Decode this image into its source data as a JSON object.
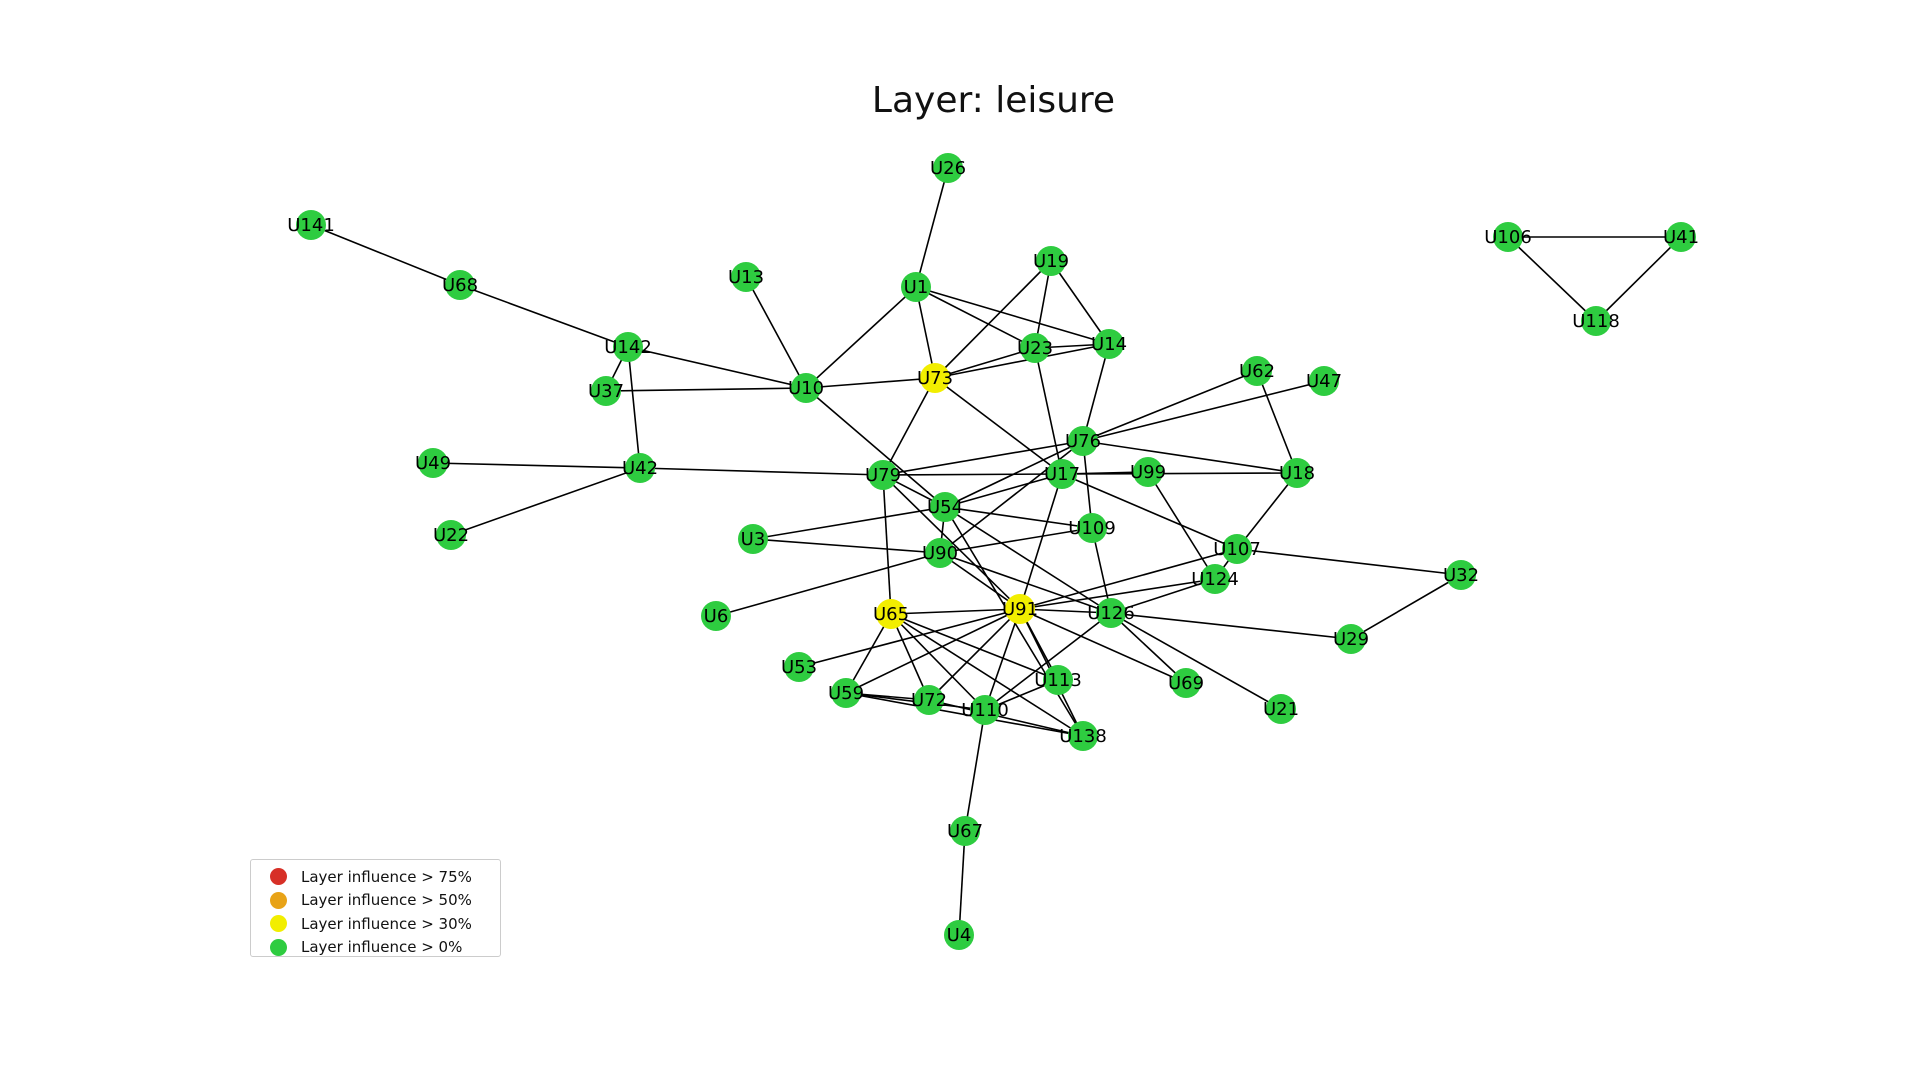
{
  "title": "Layer: leisure",
  "colors": {
    "edge": "#000000",
    "red": "#d73027",
    "orange": "#e8a317",
    "yellow": "#f2ee00",
    "green": "#2ecc40"
  },
  "legend": [
    {
      "label": "Layer influence > 75%",
      "color": "#d73027"
    },
    {
      "label": "Layer influence > 50%",
      "color": "#e8a317"
    },
    {
      "label": "Layer influence > 30%",
      "color": "#f2ee00"
    },
    {
      "label": "Layer influence > 0%",
      "color": "#2ecc40"
    }
  ],
  "nodes": [
    {
      "id": "U26",
      "level": "green"
    },
    {
      "id": "U141",
      "level": "green"
    },
    {
      "id": "U68",
      "level": "green"
    },
    {
      "id": "U13",
      "level": "green"
    },
    {
      "id": "U1",
      "level": "green"
    },
    {
      "id": "U19",
      "level": "green"
    },
    {
      "id": "U142",
      "level": "green"
    },
    {
      "id": "U23",
      "level": "green"
    },
    {
      "id": "U14",
      "level": "green"
    },
    {
      "id": "U37",
      "level": "green"
    },
    {
      "id": "U10",
      "level": "green"
    },
    {
      "id": "U73",
      "level": "yellow"
    },
    {
      "id": "U62",
      "level": "green"
    },
    {
      "id": "U47",
      "level": "green"
    },
    {
      "id": "U76",
      "level": "green"
    },
    {
      "id": "U49",
      "level": "green"
    },
    {
      "id": "U42",
      "level": "green"
    },
    {
      "id": "U79",
      "level": "green"
    },
    {
      "id": "U17",
      "level": "green"
    },
    {
      "id": "U99",
      "level": "green"
    },
    {
      "id": "U18",
      "level": "green"
    },
    {
      "id": "U54",
      "level": "green"
    },
    {
      "id": "U22",
      "level": "green"
    },
    {
      "id": "U3",
      "level": "green"
    },
    {
      "id": "U109",
      "level": "green"
    },
    {
      "id": "U90",
      "level": "green"
    },
    {
      "id": "U107",
      "level": "green"
    },
    {
      "id": "U124",
      "level": "green"
    },
    {
      "id": "U32",
      "level": "green"
    },
    {
      "id": "U6",
      "level": "green"
    },
    {
      "id": "U65",
      "level": "yellow"
    },
    {
      "id": "U91",
      "level": "yellow"
    },
    {
      "id": "U126",
      "level": "green"
    },
    {
      "id": "U29",
      "level": "green"
    },
    {
      "id": "U53",
      "level": "green"
    },
    {
      "id": "U113",
      "level": "green"
    },
    {
      "id": "U69",
      "level": "green"
    },
    {
      "id": "U59",
      "level": "green"
    },
    {
      "id": "U72",
      "level": "green"
    },
    {
      "id": "U110",
      "level": "green"
    },
    {
      "id": "U21",
      "level": "green"
    },
    {
      "id": "U138",
      "level": "green"
    },
    {
      "id": "U67",
      "level": "green"
    },
    {
      "id": "U4",
      "level": "green"
    },
    {
      "id": "U106",
      "level": "green"
    },
    {
      "id": "U41",
      "level": "green"
    },
    {
      "id": "U118",
      "level": "green"
    }
  ],
  "edges": [
    [
      "U141",
      "U68"
    ],
    [
      "U68",
      "U142"
    ],
    [
      "U142",
      "U37"
    ],
    [
      "U142",
      "U42"
    ],
    [
      "U142",
      "U10"
    ],
    [
      "U37",
      "U10"
    ],
    [
      "U10",
      "U13"
    ],
    [
      "U10",
      "U1"
    ],
    [
      "U10",
      "U73"
    ],
    [
      "U10",
      "U54"
    ],
    [
      "U1",
      "U26"
    ],
    [
      "U1",
      "U73"
    ],
    [
      "U1",
      "U23"
    ],
    [
      "U1",
      "U14"
    ],
    [
      "U19",
      "U73"
    ],
    [
      "U19",
      "U23"
    ],
    [
      "U19",
      "U14"
    ],
    [
      "U23",
      "U73"
    ],
    [
      "U23",
      "U14"
    ],
    [
      "U23",
      "U17"
    ],
    [
      "U73",
      "U14"
    ],
    [
      "U73",
      "U79"
    ],
    [
      "U73",
      "U17"
    ],
    [
      "U14",
      "U76"
    ],
    [
      "U76",
      "U62"
    ],
    [
      "U76",
      "U47"
    ],
    [
      "U76",
      "U79"
    ],
    [
      "U76",
      "U18"
    ],
    [
      "U76",
      "U109"
    ],
    [
      "U76",
      "U54"
    ],
    [
      "U76",
      "U90"
    ],
    [
      "U62",
      "U18"
    ],
    [
      "U18",
      "U107"
    ],
    [
      "U49",
      "U42"
    ],
    [
      "U42",
      "U22"
    ],
    [
      "U42",
      "U79"
    ],
    [
      "U79",
      "U17"
    ],
    [
      "U79",
      "U54"
    ],
    [
      "U79",
      "U65"
    ],
    [
      "U79",
      "U91"
    ],
    [
      "U17",
      "U99"
    ],
    [
      "U17",
      "U18"
    ],
    [
      "U17",
      "U107"
    ],
    [
      "U17",
      "U91"
    ],
    [
      "U17",
      "U54"
    ],
    [
      "U99",
      "U124"
    ],
    [
      "U54",
      "U109"
    ],
    [
      "U54",
      "U90"
    ],
    [
      "U54",
      "U126"
    ],
    [
      "U54",
      "U138"
    ],
    [
      "U54",
      "U3"
    ],
    [
      "U3",
      "U90"
    ],
    [
      "U90",
      "U109"
    ],
    [
      "U90",
      "U126"
    ],
    [
      "U90",
      "U91"
    ],
    [
      "U90",
      "U6"
    ],
    [
      "U109",
      "U126"
    ],
    [
      "U107",
      "U32"
    ],
    [
      "U107",
      "U91"
    ],
    [
      "U107",
      "U124"
    ],
    [
      "U124",
      "U91"
    ],
    [
      "U124",
      "U126"
    ],
    [
      "U32",
      "U29"
    ],
    [
      "U65",
      "U91"
    ],
    [
      "U65",
      "U59"
    ],
    [
      "U65",
      "U72"
    ],
    [
      "U65",
      "U110"
    ],
    [
      "U65",
      "U113"
    ],
    [
      "U65",
      "U138"
    ],
    [
      "U91",
      "U53"
    ],
    [
      "U91",
      "U59"
    ],
    [
      "U91",
      "U72"
    ],
    [
      "U91",
      "U110"
    ],
    [
      "U91",
      "U113"
    ],
    [
      "U91",
      "U138"
    ],
    [
      "U91",
      "U126"
    ],
    [
      "U91",
      "U69"
    ],
    [
      "U126",
      "U29"
    ],
    [
      "U126",
      "U21"
    ],
    [
      "U126",
      "U69"
    ],
    [
      "U126",
      "U110"
    ],
    [
      "U59",
      "U72"
    ],
    [
      "U59",
      "U110"
    ],
    [
      "U59",
      "U138"
    ],
    [
      "U72",
      "U138"
    ],
    [
      "U110",
      "U113"
    ],
    [
      "U110",
      "U67"
    ],
    [
      "U67",
      "U4"
    ],
    [
      "U106",
      "U41"
    ],
    [
      "U106",
      "U118"
    ],
    [
      "U41",
      "U118"
    ]
  ]
}
